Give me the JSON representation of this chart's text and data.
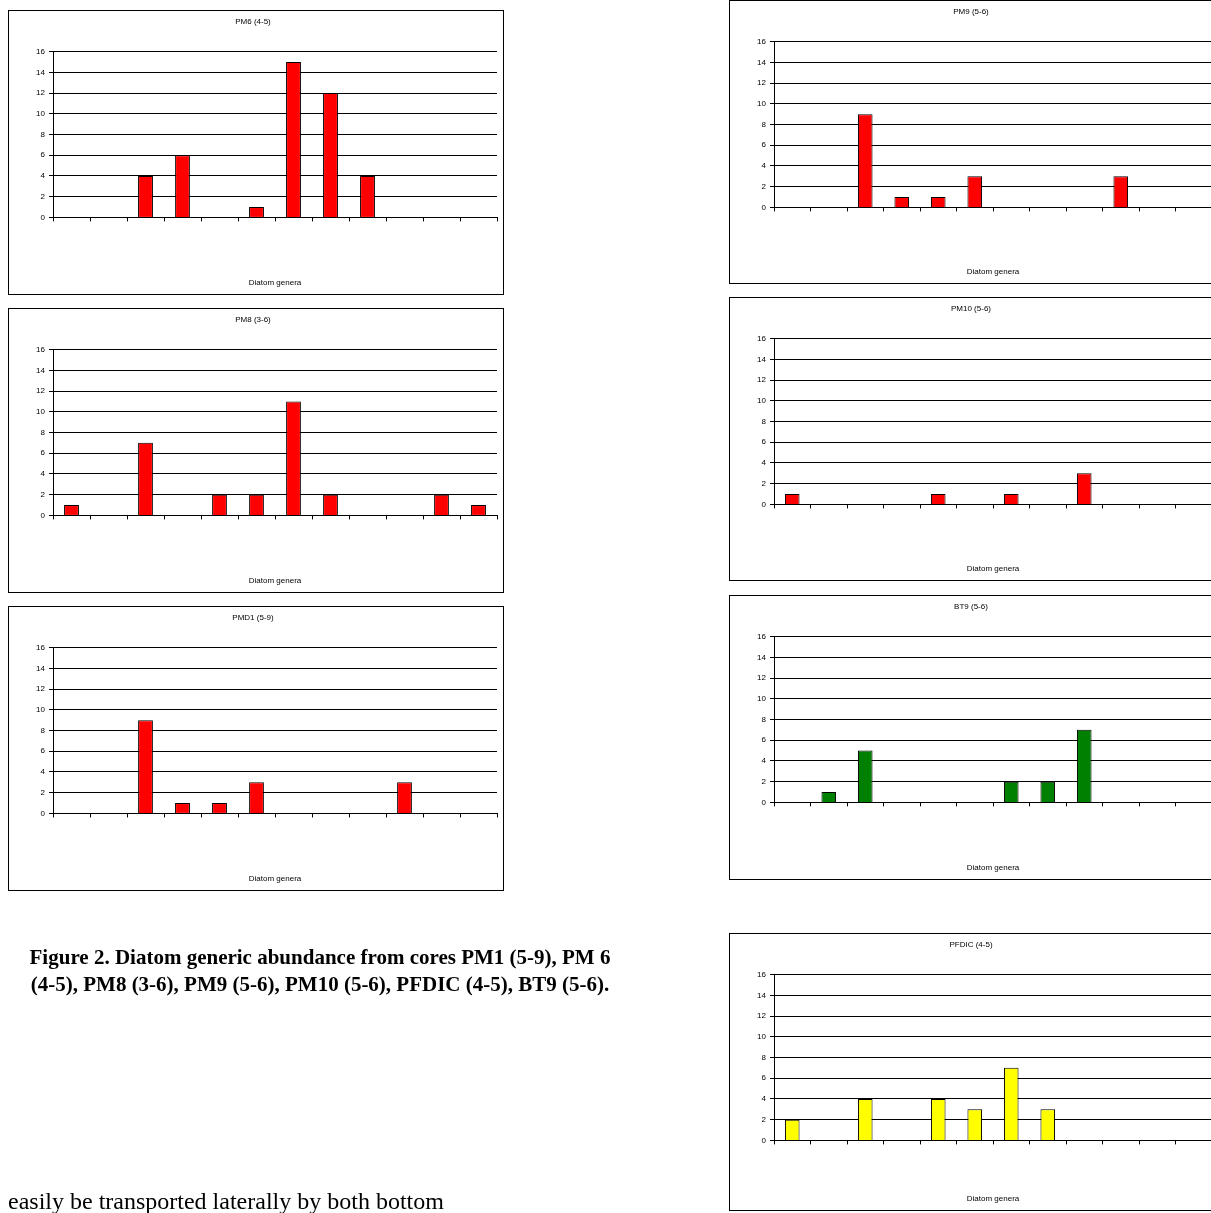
{
  "chart_data": [
    {
      "type": "bar",
      "title": "PM6 (4-5)",
      "xlabel": "Diatom genera",
      "categories": [
        null,
        null,
        null,
        null,
        null,
        null,
        null,
        null,
        null,
        null,
        null,
        null
      ],
      "values": [
        0,
        0,
        4,
        6,
        0,
        1,
        15,
        12,
        4,
        0,
        0,
        0
      ],
      "color": "#ff0000",
      "ylim": [
        0,
        16
      ],
      "yticks": [
        0,
        2,
        4,
        6,
        8,
        10,
        12,
        14,
        16
      ],
      "grid": "y",
      "tick_labels": "y"
    },
    {
      "type": "bar",
      "title": "PM8 (3-6)",
      "xlabel": "Diatom genera",
      "categories": [
        null,
        null,
        null,
        null,
        null,
        null,
        null,
        null,
        null,
        null,
        null,
        null
      ],
      "values": [
        1,
        0,
        7,
        0,
        2,
        2,
        11,
        2,
        0,
        0,
        2,
        1
      ],
      "color": "#ff0000",
      "ylim": [
        0,
        16
      ],
      "yticks": [
        0,
        2,
        4,
        6,
        8,
        10,
        12,
        14,
        16
      ],
      "grid": "y",
      "tick_labels": "y"
    },
    {
      "type": "bar",
      "title": "PMD1 (5-9)",
      "xlabel": "Diatom genera",
      "categories": [
        null,
        null,
        null,
        null,
        null,
        null,
        null,
        null,
        null,
        null,
        null,
        null
      ],
      "values": [
        0,
        0,
        9,
        1,
        1,
        3,
        0,
        0,
        0,
        3,
        0,
        0
      ],
      "color": "#ff0000",
      "ylim": [
        0,
        16
      ],
      "yticks": [
        0,
        2,
        4,
        6,
        8,
        10,
        12,
        14,
        16
      ],
      "grid": "y",
      "tick_labels": "y",
      "annotations": [
        "Figure 2.  Diatom generic abundance from cores PM1 (5-9), PM 6 (4-5), PM8 (3-6), PM9 (5-6), PM10 (5-6), PFDIC (4-5), BT9 (5-6).",
        "easily be transported laterally by both bottom"
      ]
    },
    {
      "type": "bar",
      "title": "PM9 (5-6)",
      "xlabel": "Diatom genera",
      "categories": [
        null,
        null,
        null,
        null,
        null,
        null,
        null,
        null,
        null,
        null,
        null,
        null
      ],
      "values": [
        0,
        0,
        9,
        1,
        1,
        3,
        0,
        0,
        0,
        3,
        0,
        0
      ],
      "color": "#ff0000",
      "ylim": [
        0,
        16
      ],
      "yticks": [
        0,
        2,
        4,
        6,
        8,
        10,
        12,
        14,
        16
      ],
      "grid": "y",
      "tick_labels": "y"
    },
    {
      "type": "bar",
      "title": "PM10 (5-6)",
      "xlabel": "Diatom genera",
      "categories": [
        null,
        null,
        null,
        null,
        null,
        null,
        null,
        null,
        null,
        null,
        null,
        null
      ],
      "values": [
        1,
        0,
        0,
        0,
        1,
        0,
        1,
        0,
        3,
        0,
        0,
        0
      ],
      "color": "#ff0000",
      "ylim": [
        0,
        16
      ],
      "yticks": [
        0,
        2,
        4,
        6,
        8,
        10,
        12,
        14,
        16
      ],
      "grid": "y",
      "tick_labels": "y"
    },
    {
      "type": "bar",
      "title": "BT9 (5-6)",
      "xlabel": "Diatom genera",
      "categories": [
        null,
        null,
        null,
        null,
        null,
        null,
        null,
        null,
        null,
        null,
        null,
        null
      ],
      "values": [
        0,
        1,
        5,
        0,
        0,
        0,
        2,
        2,
        7,
        0,
        0,
        0
      ],
      "color": "#008000",
      "ylim": [
        0,
        16
      ],
      "yticks": [
        0,
        2,
        4,
        6,
        8,
        10,
        12,
        14,
        16
      ],
      "grid": "y",
      "tick_labels": "y"
    },
    {
      "type": "bar",
      "title": "PFDIC (4-5)",
      "xlabel": "Diatom genera",
      "categories": [
        null,
        null,
        null,
        null,
        null,
        null,
        null,
        null,
        null,
        null,
        null,
        null
      ],
      "values": [
        2,
        0,
        4,
        0,
        4,
        3,
        7,
        3,
        0,
        0,
        0,
        0
      ],
      "color": "#ffff00",
      "ylim": [
        0,
        16
      ],
      "yticks": [
        0,
        2,
        4,
        6,
        8,
        10,
        12,
        14,
        16
      ],
      "grid": "y",
      "tick_labels": "y"
    }
  ]
}
